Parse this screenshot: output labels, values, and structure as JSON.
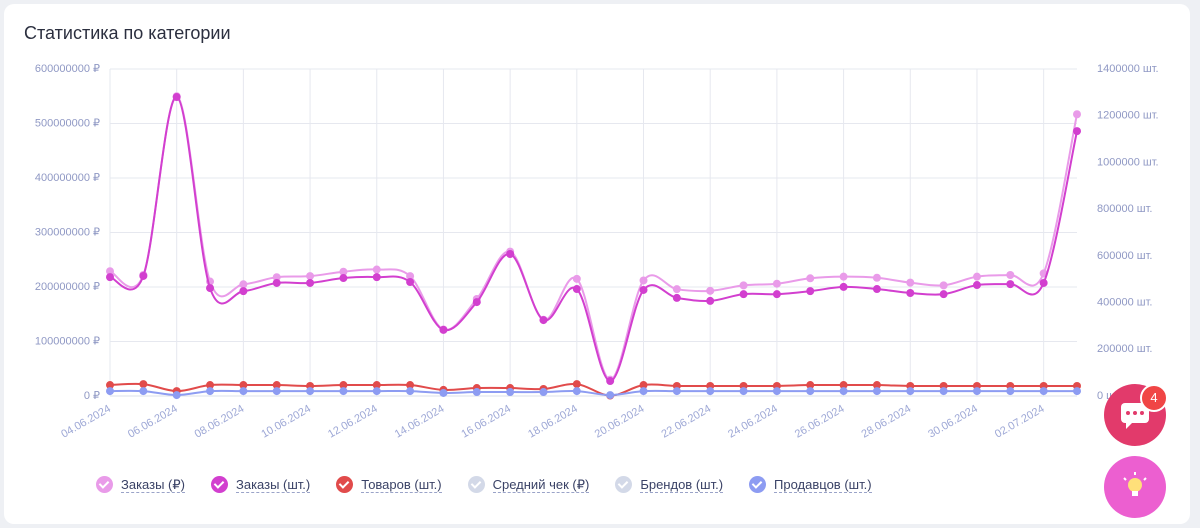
{
  "chart_data": {
    "type": "line",
    "title": "Статистика по категории",
    "categories": [
      "04.06.2024",
      null,
      "06.06.2024",
      null,
      "08.06.2024",
      null,
      "10.06.2024",
      null,
      "12.06.2024",
      null,
      "14.06.2024",
      null,
      "16.06.2024",
      null,
      "18.06.2024",
      null,
      "20.06.2024",
      null,
      "22.06.2024",
      null,
      "24.06.2024",
      null,
      "26.06.2024",
      null,
      "28.06.2024",
      null,
      "30.06.2024",
      null,
      "02.07.2024",
      null
    ],
    "ylim": [
      0,
      600000000
    ],
    "yticks": [
      {
        "value": 0,
        "label": "0 ₽"
      },
      {
        "value": 100000000,
        "label": "100000000 ₽"
      },
      {
        "value": 200000000,
        "label": "200000000 ₽"
      },
      {
        "value": 300000000,
        "label": "300000000 ₽"
      },
      {
        "value": 400000000,
        "label": "400000000 ₽"
      },
      {
        "value": 500000000,
        "label": "500000000 ₽"
      },
      {
        "value": 600000000,
        "label": "600000000 ₽"
      }
    ],
    "y2lim": [
      0,
      1400000
    ],
    "y2ticks": [
      {
        "value": 0,
        "label": "0 шт."
      },
      {
        "value": 200000,
        "label": "200000 шт."
      },
      {
        "value": 400000,
        "label": "400000 шт."
      },
      {
        "value": 600000,
        "label": "600000 шт."
      },
      {
        "value": 800000,
        "label": "800000 шт."
      },
      {
        "value": 1000000,
        "label": "1000000 шт."
      },
      {
        "value": 1200000,
        "label": "1200000 шт."
      },
      {
        "value": 1400000,
        "label": "1400000 шт."
      }
    ],
    "grid": true,
    "series": [
      {
        "name": "Заказы (₽)",
        "color": "#e99be9",
        "axis": "y",
        "enabled": true,
        "values": [
          229000000,
          222000000,
          550000000,
          210000000,
          205000000,
          218000000,
          220000000,
          228000000,
          232000000,
          220000000,
          122000000,
          178000000,
          265000000,
          140000000,
          215000000,
          30000000,
          212000000,
          196000000,
          193000000,
          203000000,
          206000000,
          216000000,
          219000000,
          217000000,
          208000000,
          203000000,
          219000000,
          222000000,
          225000000,
          517000000
        ]
      },
      {
        "name": "Заказы (шт.)",
        "color": "#d23fcf",
        "axis": "y2",
        "enabled": true,
        "values": [
          509000,
          514000,
          1280000,
          462000,
          449000,
          484000,
          484000,
          505000,
          509000,
          488000,
          283000,
          402000,
          608000,
          325000,
          458000,
          64000,
          454000,
          420000,
          407000,
          436000,
          436000,
          449000,
          467000,
          458000,
          441000,
          436000,
          475000,
          479000,
          484000,
          1134000
        ]
      },
      {
        "name": "Товаров (шт.)",
        "color": "#e14b4b",
        "axis": "y2",
        "enabled": true,
        "values": [
          47000,
          51000,
          21000,
          47000,
          47000,
          47000,
          43000,
          47000,
          47000,
          47000,
          26000,
          34000,
          34000,
          30000,
          51000,
          2000,
          47000,
          43000,
          43000,
          43000,
          43000,
          47000,
          47000,
          47000,
          43000,
          43000,
          43000,
          43000,
          43000,
          43000
        ]
      },
      {
        "name": "Средний чек (₽)",
        "color": "#d3d9e8",
        "axis": "y",
        "enabled": false
      },
      {
        "name": "Брендов (шт.)",
        "color": "#d3d9e8",
        "axis": "y2",
        "enabled": false
      },
      {
        "name": "Продавцов (шт.)",
        "color": "#8d9cf2",
        "axis": "y2",
        "enabled": true,
        "values": [
          21000,
          21000,
          4000,
          21000,
          21000,
          21000,
          21000,
          21000,
          21000,
          21000,
          13000,
          17000,
          17000,
          17000,
          21000,
          4000,
          21000,
          21000,
          21000,
          21000,
          21000,
          21000,
          21000,
          21000,
          21000,
          21000,
          21000,
          21000,
          21000,
          21000
        ]
      }
    ]
  },
  "chat_badge": "4"
}
